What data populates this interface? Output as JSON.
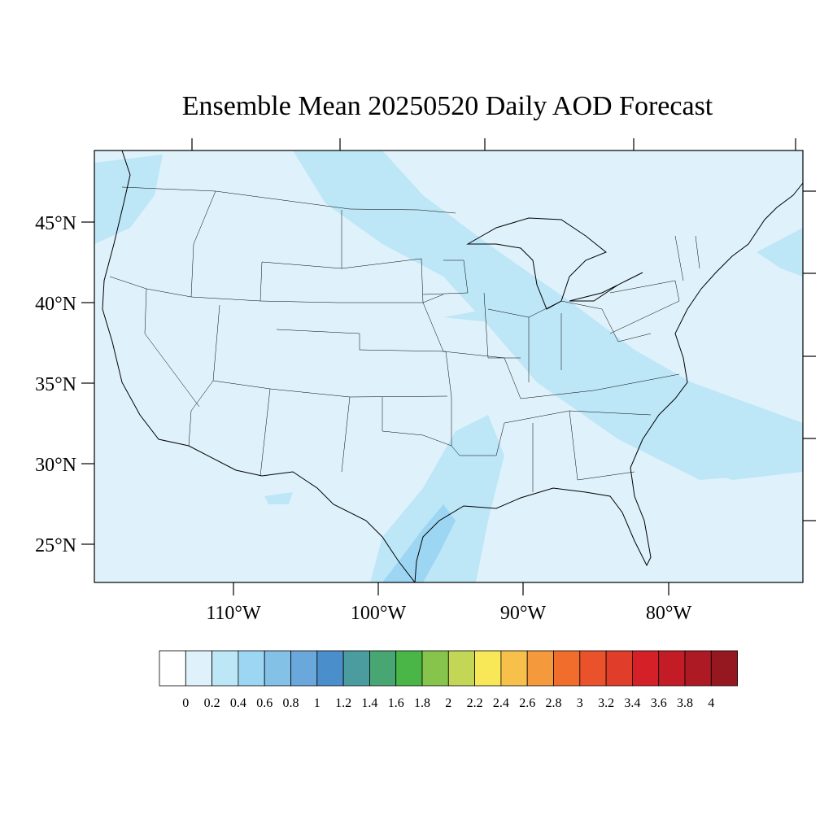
{
  "title": "Ensemble Mean 20250520 Daily AOD Forecast",
  "map": {
    "lat_labels": [
      "45°N",
      "40°N",
      "35°N",
      "30°N",
      "25°N"
    ],
    "lon_labels": [
      "110°W",
      "100°W",
      "90°W",
      "80°W"
    ],
    "background_color": "#dff2fb"
  },
  "colorbar": {
    "labels": [
      "0",
      "0.2",
      "0.4",
      "0.6",
      "0.8",
      "1",
      "1.2",
      "1.4",
      "1.6",
      "1.8",
      "2",
      "2.2",
      "2.4",
      "2.6",
      "2.8",
      "3",
      "3.2",
      "3.4",
      "3.6",
      "3.8",
      "4"
    ],
    "colors": [
      "#ffffff",
      "#dff2fb",
      "#bde6f7",
      "#9dd6f3",
      "#83c1e6",
      "#6aa7da",
      "#4a8ecb",
      "#4a9c9e",
      "#48a673",
      "#4ab648",
      "#86c44c",
      "#c4d656",
      "#f8e757",
      "#f6c04b",
      "#f49a3d",
      "#f06d2c",
      "#e9522b",
      "#e03d2a",
      "#d52028",
      "#c41c27",
      "#ae1a24",
      "#951720"
    ]
  }
}
